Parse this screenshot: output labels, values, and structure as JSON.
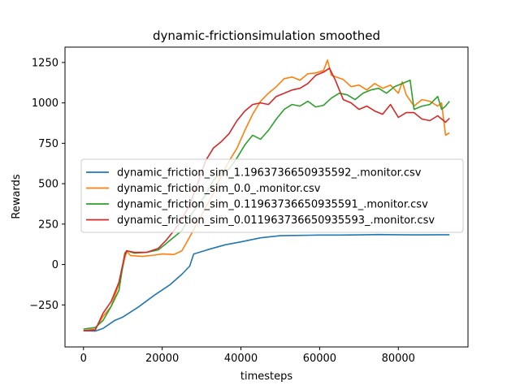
{
  "chart_data": {
    "type": "line",
    "title": "dynamic-frictionsimulation smoothed",
    "xlabel": "timesteps",
    "ylabel": "Rewards",
    "xlim": [
      -4700,
      97700
    ],
    "ylim": [
      -510,
      1345
    ],
    "xticks": [
      0,
      20000,
      40000,
      60000,
      80000
    ],
    "xtick_labels": [
      "0",
      "20000",
      "40000",
      "60000",
      "80000"
    ],
    "yticks": [
      -250,
      0,
      250,
      500,
      750,
      1000,
      1250
    ],
    "ytick_labels": [
      "−250",
      "0",
      "250",
      "500",
      "750",
      "1000",
      "1250"
    ],
    "grid": false,
    "legend_position": "center-left",
    "series": [
      {
        "name": "dynamic_friction_sim_1.1963736650935592_.monitor.csv",
        "color": "#1f77b4",
        "points": [
          [
            0,
            -410
          ],
          [
            3000,
            -412
          ],
          [
            5000,
            -395
          ],
          [
            8000,
            -345
          ],
          [
            10000,
            -325
          ],
          [
            14000,
            -262
          ],
          [
            18000,
            -190
          ],
          [
            22000,
            -125
          ],
          [
            25000,
            -60
          ],
          [
            27000,
            -10
          ],
          [
            28000,
            65
          ],
          [
            32000,
            95
          ],
          [
            36000,
            122
          ],
          [
            40000,
            140
          ],
          [
            45000,
            165
          ],
          [
            50000,
            178
          ],
          [
            55000,
            180
          ],
          [
            60000,
            182
          ],
          [
            65000,
            182
          ],
          [
            70000,
            183
          ],
          [
            75000,
            185
          ],
          [
            80000,
            184
          ],
          [
            85000,
            183
          ],
          [
            90000,
            184
          ],
          [
            93000,
            184
          ]
        ]
      },
      {
        "name": "dynamic_friction_sim_0.0_.monitor.csv",
        "color": "#ff7f0e",
        "points": [
          [
            0,
            -410
          ],
          [
            3000,
            -400
          ],
          [
            5000,
            -320
          ],
          [
            7000,
            -260
          ],
          [
            9000,
            -120
          ],
          [
            10500,
            40
          ],
          [
            11000,
            80
          ],
          [
            12000,
            55
          ],
          [
            15000,
            50
          ],
          [
            18000,
            58
          ],
          [
            20000,
            65
          ],
          [
            23000,
            62
          ],
          [
            25000,
            85
          ],
          [
            27000,
            170
          ],
          [
            29000,
            260
          ],
          [
            31000,
            350
          ],
          [
            33000,
            440
          ],
          [
            35000,
            550
          ],
          [
            37000,
            640
          ],
          [
            39000,
            720
          ],
          [
            41000,
            830
          ],
          [
            43000,
            930
          ],
          [
            45000,
            1010
          ],
          [
            47000,
            1060
          ],
          [
            49000,
            1100
          ],
          [
            51000,
            1150
          ],
          [
            53000,
            1160
          ],
          [
            55000,
            1140
          ],
          [
            57000,
            1180
          ],
          [
            59000,
            1185
          ],
          [
            61000,
            1200
          ],
          [
            62000,
            1265
          ],
          [
            63000,
            1170
          ],
          [
            66000,
            1145
          ],
          [
            68000,
            1100
          ],
          [
            70000,
            1110
          ],
          [
            72000,
            1080
          ],
          [
            74000,
            1120
          ],
          [
            76000,
            1090
          ],
          [
            78000,
            1110
          ],
          [
            80000,
            1060
          ],
          [
            81000,
            1130
          ],
          [
            82000,
            1050
          ],
          [
            84000,
            980
          ],
          [
            86000,
            1020
          ],
          [
            88000,
            1010
          ],
          [
            90000,
            980
          ],
          [
            91000,
            1000
          ],
          [
            92000,
            800
          ],
          [
            93000,
            815
          ]
        ]
      },
      {
        "name": "dynamic_friction_sim_0.11963736650935591_.monitor.csv",
        "color": "#2ca02c",
        "points": [
          [
            0,
            -400
          ],
          [
            3000,
            -390
          ],
          [
            5000,
            -345
          ],
          [
            7000,
            -260
          ],
          [
            9000,
            -160
          ],
          [
            10500,
            70
          ],
          [
            11000,
            85
          ],
          [
            13000,
            70
          ],
          [
            16000,
            75
          ],
          [
            19000,
            90
          ],
          [
            21000,
            130
          ],
          [
            23000,
            170
          ],
          [
            25000,
            210
          ],
          [
            27000,
            300
          ],
          [
            29000,
            360
          ],
          [
            31000,
            430
          ],
          [
            33000,
            520
          ],
          [
            35000,
            570
          ],
          [
            37000,
            590
          ],
          [
            39000,
            660
          ],
          [
            41000,
            740
          ],
          [
            43000,
            800
          ],
          [
            45000,
            775
          ],
          [
            47000,
            830
          ],
          [
            49000,
            900
          ],
          [
            51000,
            960
          ],
          [
            53000,
            990
          ],
          [
            55000,
            980
          ],
          [
            57000,
            1010
          ],
          [
            59000,
            975
          ],
          [
            61000,
            985
          ],
          [
            63000,
            1030
          ],
          [
            65000,
            1060
          ],
          [
            67000,
            1050
          ],
          [
            69000,
            1020
          ],
          [
            71000,
            1060
          ],
          [
            73000,
            1080
          ],
          [
            75000,
            1090
          ],
          [
            77000,
            1060
          ],
          [
            79000,
            1100
          ],
          [
            81000,
            1120
          ],
          [
            83000,
            1140
          ],
          [
            84000,
            960
          ],
          [
            86000,
            980
          ],
          [
            88000,
            990
          ],
          [
            90000,
            1040
          ],
          [
            91000,
            960
          ],
          [
            92000,
            980
          ],
          [
            93000,
            1010
          ]
        ]
      },
      {
        "name": "dynamic_friction_sim_0.011963736650935593_.monitor.csv",
        "color": "#d62728",
        "points": [
          [
            0,
            -410
          ],
          [
            3000,
            -405
          ],
          [
            5000,
            -300
          ],
          [
            7000,
            -230
          ],
          [
            9000,
            -110
          ],
          [
            10500,
            60
          ],
          [
            11000,
            85
          ],
          [
            13000,
            75
          ],
          [
            16000,
            75
          ],
          [
            19000,
            100
          ],
          [
            21000,
            150
          ],
          [
            23000,
            210
          ],
          [
            25000,
            280
          ],
          [
            27000,
            370
          ],
          [
            29000,
            500
          ],
          [
            31000,
            640
          ],
          [
            33000,
            720
          ],
          [
            35000,
            760
          ],
          [
            37000,
            810
          ],
          [
            39000,
            890
          ],
          [
            41000,
            950
          ],
          [
            43000,
            990
          ],
          [
            45000,
            1000
          ],
          [
            47000,
            990
          ],
          [
            49000,
            1040
          ],
          [
            51000,
            1060
          ],
          [
            53000,
            1080
          ],
          [
            55000,
            1090
          ],
          [
            57000,
            1120
          ],
          [
            59000,
            1170
          ],
          [
            61000,
            1190
          ],
          [
            62500,
            1215
          ],
          [
            64000,
            1140
          ],
          [
            66000,
            1020
          ],
          [
            68000,
            1000
          ],
          [
            70000,
            960
          ],
          [
            72000,
            980
          ],
          [
            74000,
            950
          ],
          [
            76000,
            930
          ],
          [
            78000,
            990
          ],
          [
            80000,
            910
          ],
          [
            82000,
            940
          ],
          [
            84000,
            940
          ],
          [
            86000,
            900
          ],
          [
            88000,
            890
          ],
          [
            90000,
            920
          ],
          [
            92000,
            880
          ],
          [
            93000,
            905
          ]
        ]
      }
    ]
  }
}
